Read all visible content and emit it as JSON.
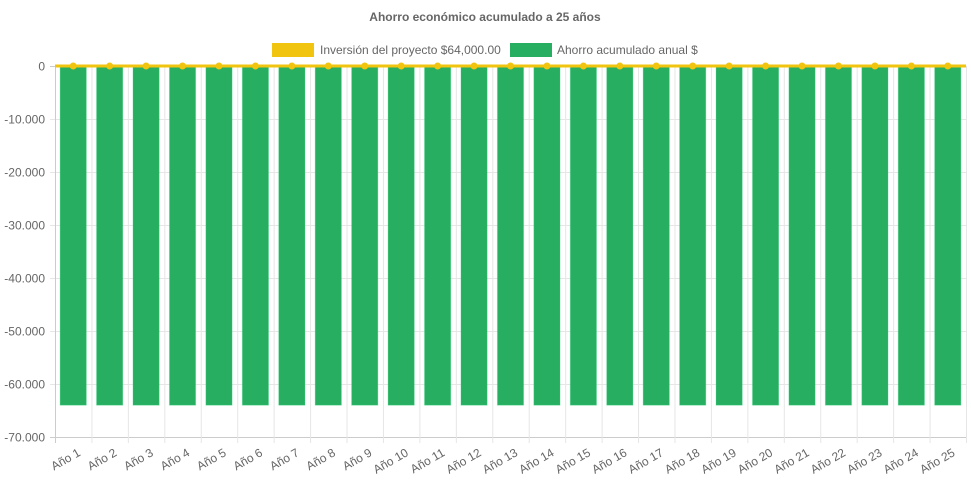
{
  "chart_data": {
    "type": "bar",
    "title": "Ahorro económico acumulado a 25 años",
    "categories": [
      "Año 1",
      "Año 2",
      "Año 3",
      "Año 4",
      "Año 5",
      "Año 6",
      "Año 7",
      "Año 8",
      "Año 9",
      "Año 10",
      "Año 11",
      "Año 12",
      "Año 13",
      "Año 14",
      "Año 15",
      "Año 16",
      "Año 17",
      "Año 18",
      "Año 19",
      "Año 20",
      "Año 21",
      "Año 22",
      "Año 23",
      "Año 24",
      "Año 25"
    ],
    "series": [
      {
        "name": "Inversión del proyecto $64,000.00",
        "type": "line",
        "color": "#f1c40f",
        "values": [
          0,
          0,
          0,
          0,
          0,
          0,
          0,
          0,
          0,
          0,
          0,
          0,
          0,
          0,
          0,
          0,
          0,
          0,
          0,
          0,
          0,
          0,
          0,
          0,
          0
        ]
      },
      {
        "name": "Ahorro acumulado anual $",
        "type": "bar",
        "color": "#27ae60",
        "values": [
          -64000,
          -64000,
          -64000,
          -64000,
          -64000,
          -64000,
          -64000,
          -64000,
          -64000,
          -64000,
          -64000,
          -64000,
          -64000,
          -64000,
          -64000,
          -64000,
          -64000,
          -64000,
          -64000,
          -64000,
          -64000,
          -64000,
          -64000,
          -64000,
          -64000
        ]
      }
    ],
    "ylim": [
      -70000,
      0
    ],
    "yticks": [
      0,
      -10000,
      -20000,
      -30000,
      -40000,
      -50000,
      -60000,
      -70000
    ],
    "ytick_labels": [
      "0",
      "-10.000",
      "-20.000",
      "-30.000",
      "-40.000",
      "-50.000",
      "-60.000",
      "-70.000"
    ],
    "xlabel": "",
    "ylabel": "",
    "grid": true,
    "legend": "top-center"
  }
}
